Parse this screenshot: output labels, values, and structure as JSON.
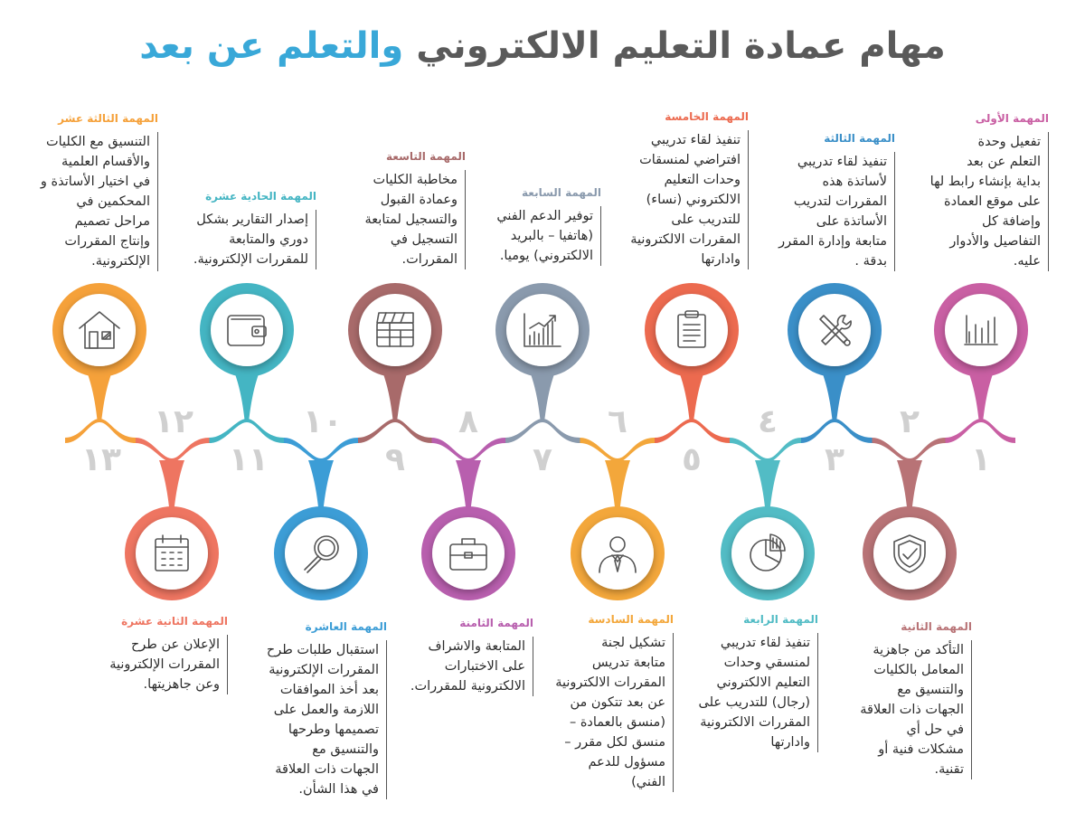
{
  "title": {
    "part1": "مهام عمادة التعليم الالكتروني",
    "part2": "والتعلم عن بعد"
  },
  "colors": {
    "c1": "#c95fa3",
    "c2": "#b87376",
    "c3": "#3a8fc8",
    "c4": "#52bcc5",
    "c5": "#ec6a4f",
    "c6": "#f3a73b",
    "c7": "#8a9aad",
    "c8": "#b85fae",
    "c9": "#a86a6a",
    "c10": "#3c9dd6",
    "c11": "#44b5c3",
    "c12": "#ee7561",
    "c13": "#f5a13a"
  },
  "tasks": [
    {
      "num": "١",
      "label": "المهمة الأولى",
      "icon": "bar-chart-icon",
      "text": [
        "تفعيل وحدة",
        "التعلم عن بعد",
        "بداية بإنشاء رابط لها",
        "على موقع العمادة",
        "وإضافة كل",
        "التفاصيل والأدوار",
        "عليه."
      ]
    },
    {
      "num": "٢",
      "label": "المهمة الثانية",
      "icon": "shield-check-icon",
      "text": [
        "التأكد من جاهزية",
        "المعامل بالكليات",
        "والتنسيق مع",
        "الجهات ذات العلاقة",
        "في حل أي",
        "مشكلات فنية أو",
        "تقنية."
      ]
    },
    {
      "num": "٣",
      "label": "المهمة الثالثة",
      "icon": "tools-icon",
      "text": [
        "تنفيذ لقاء تدريبي",
        "لأساتذة هذه",
        "المقررات لتدريب",
        "الأساتذة على",
        "متابعة وإدارة المقرر",
        "بدقة ."
      ]
    },
    {
      "num": "٤",
      "label": "المهمة الرابعة",
      "icon": "pie-chart-icon",
      "text": [
        "تنفيذ لقاء تدريبي",
        "لمنسقي وحدات",
        "التعليم الالكتروني",
        "(رجال) للتدريب على",
        "المقررات الالكترونية",
        "وادارتها"
      ]
    },
    {
      "num": "٥",
      "label": "المهمة الخامسة",
      "icon": "clipboard-icon",
      "text": [
        "تنفيذ لقاء تدريبي",
        "افتراضي لمنسقات",
        "وحدات التعليم",
        "الالكتروني (نساء)",
        "للتدريب على",
        "المقررات الالكترونية",
        "وادارتها"
      ]
    },
    {
      "num": "٦",
      "label": "المهمة السادسة",
      "icon": "person-tie-icon",
      "text": [
        "تشكيل لجنة",
        "متابعة تدريس",
        "المقررات الالكترونية",
        "عن بعد تتكون من",
        "(منسق بالعمادة –",
        "منسق لكل مقرر –",
        "مسؤول للدعم",
        "الفني)"
      ]
    },
    {
      "num": "٧",
      "label": "المهمة السابعة",
      "icon": "growth-chart-icon",
      "text": [
        "توفير الدعم الفني",
        "(هاتفيا – بالبريد",
        "الالكتروني) يوميا."
      ]
    },
    {
      "num": "٨",
      "label": "المهمة الثامنة",
      "icon": "briefcase-icon",
      "text": [
        "المتابعة والاشراف",
        "على الاختبارات",
        "الالكترونية للمقررات."
      ]
    },
    {
      "num": "٩",
      "label": "المهمة التاسعة",
      "icon": "clapperboard-icon",
      "text": [
        "مخاطبة الكليات",
        "وعمادة القبول",
        "والتسجيل لمتابعة",
        "التسجيل في",
        "المقررات."
      ]
    },
    {
      "num": "١٠",
      "label": "المهمة العاشرة",
      "icon": "magnifier-icon",
      "text": [
        "استقبال طلبات طرح",
        "المقررات الإلكترونية",
        "بعد أخذ الموافقات",
        "اللازمة والعمل على",
        "تصميمها وطرحها",
        "والتنسيق مع",
        "الجهات ذات العلاقة",
        "في هذا الشأن."
      ]
    },
    {
      "num": "١١",
      "label": "المهمة الحادية عشرة",
      "icon": "wallet-icon",
      "text": [
        "إصدار التقارير بشكل",
        "دوري والمتابعة",
        "للمقررات الإلكترونية."
      ]
    },
    {
      "num": "١٢",
      "label": "المهمة الثانية عشرة",
      "icon": "calendar-icon",
      "text": [
        "الإعلان عن طرح",
        "المقررات الإلكترونية",
        "وعن جاهزيتها."
      ]
    },
    {
      "num": "١٣",
      "label": "المهمة الثالثة عشر",
      "icon": "house-icon",
      "text": [
        "التنسيق مع الكليات",
        "والأقسام العلمية",
        "في اختيار الأساتذة و",
        "المحكمين في",
        "مراحل تصميم",
        "وإنتاج المقررات",
        "الإلكترونية."
      ]
    }
  ]
}
